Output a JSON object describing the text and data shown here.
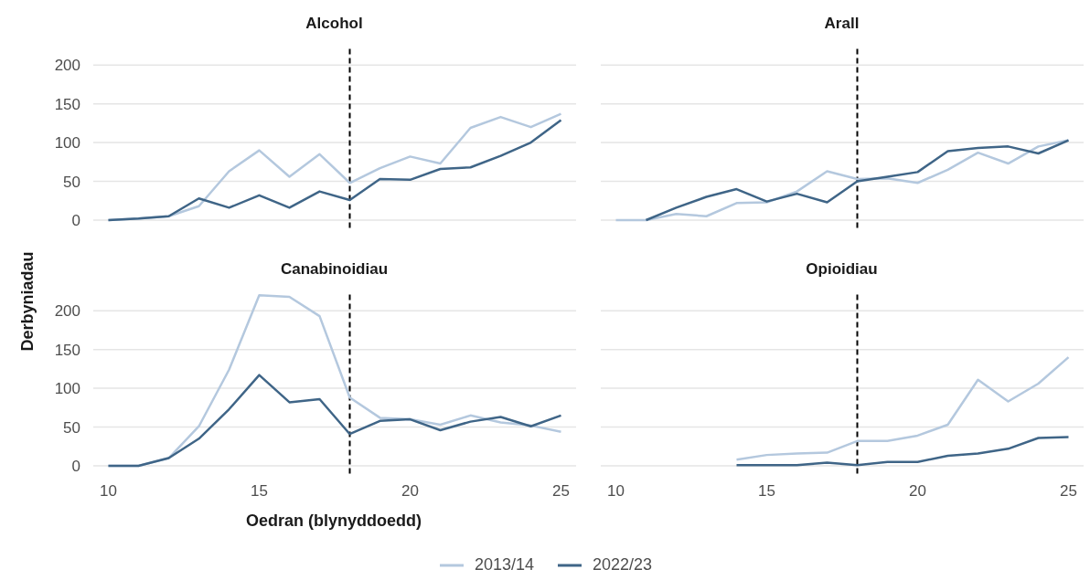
{
  "chart_data": [
    {
      "type": "line",
      "title": "Alcohol",
      "x": [
        10,
        11,
        12,
        13,
        14,
        15,
        16,
        17,
        18,
        19,
        20,
        21,
        22,
        23,
        24,
        25
      ],
      "xlim": [
        9.5,
        25.5
      ],
      "xticks": [
        10,
        15,
        20,
        25
      ],
      "ylim": [
        -10,
        225
      ],
      "yticks": [
        0,
        50,
        100,
        150,
        200
      ],
      "grid": "y",
      "tick_labels": "y",
      "ref_lines": [
        {
          "axis": "x",
          "value": 18,
          "color": "#000000",
          "line_style": "dashed"
        }
      ],
      "series": [
        {
          "color": "#b4c8de",
          "values": [
            0,
            2,
            5,
            18,
            63,
            90,
            56,
            85,
            48,
            67,
            82,
            73,
            119,
            133,
            120,
            137
          ]
        },
        {
          "color": "#3f6587",
          "values": [
            0,
            2,
            5,
            28,
            16,
            32,
            16,
            37,
            26,
            53,
            52,
            66,
            68,
            83,
            100,
            129
          ]
        }
      ]
    },
    {
      "type": "line",
      "title": "Arall",
      "x": [
        10,
        11,
        12,
        13,
        14,
        15,
        16,
        17,
        18,
        19,
        20,
        21,
        22,
        23,
        24,
        25
      ],
      "xlim": [
        9.5,
        25.5
      ],
      "xticks": [
        10,
        15,
        20,
        25
      ],
      "ylim": [
        -10,
        225
      ],
      "yticks": [
        0,
        50,
        100,
        150,
        200
      ],
      "grid": "y",
      "tick_labels": false,
      "ref_lines": [
        {
          "axis": "x",
          "value": 18,
          "color": "#000000",
          "line_style": "dashed"
        }
      ],
      "series": [
        {
          "color": "#b4c8de",
          "values": [
            0,
            0,
            8,
            5,
            22,
            23,
            37,
            63,
            53,
            54,
            48,
            65,
            87,
            73,
            95,
            103
          ]
        },
        {
          "color": "#3f6587",
          "values": [
            null,
            0,
            16,
            30,
            40,
            24,
            34,
            23,
            50,
            56,
            62,
            89,
            93,
            95,
            86,
            103
          ]
        }
      ]
    },
    {
      "type": "line",
      "title": "Canabinoidiau",
      "xlabel": "Oedran (blynyddoedd)",
      "ylabel": "Derbyniadau",
      "x": [
        10,
        11,
        12,
        13,
        14,
        15,
        16,
        17,
        18,
        19,
        20,
        21,
        22,
        23,
        24,
        25
      ],
      "xlim": [
        9.5,
        25.5
      ],
      "xticks": [
        10,
        15,
        20,
        25
      ],
      "ylim": [
        -10,
        225
      ],
      "yticks": [
        0,
        50,
        100,
        150,
        200
      ],
      "grid": "y",
      "ref_lines": [
        {
          "axis": "x",
          "value": 18,
          "color": "#000000",
          "line_style": "dashed"
        }
      ],
      "series": [
        {
          "color": "#b4c8de",
          "values": [
            0,
            0,
            10,
            51,
            124,
            220,
            218,
            193,
            88,
            62,
            60,
            53,
            65,
            56,
            52,
            44
          ]
        },
        {
          "color": "#3f6587",
          "values": [
            0,
            0,
            10,
            35,
            73,
            117,
            82,
            86,
            41,
            58,
            60,
            46,
            57,
            63,
            51,
            65
          ]
        }
      ]
    },
    {
      "type": "line",
      "title": "Opioidiau",
      "x": [
        14,
        15,
        16,
        17,
        18,
        19,
        20,
        21,
        22,
        23,
        24,
        25
      ],
      "xlim": [
        9.5,
        25.5
      ],
      "xticks": [
        10,
        15,
        20,
        25
      ],
      "ylim": [
        -10,
        225
      ],
      "yticks": [
        0,
        50,
        100,
        150,
        200
      ],
      "grid": "y",
      "tick_labels": "x",
      "legend": "bottom",
      "ref_lines": [
        {
          "axis": "x",
          "value": 18,
          "color": "#000000",
          "line_style": "dashed"
        }
      ],
      "series": [
        {
          "name": "2013/14",
          "color": "#b4c8de",
          "values": [
            8,
            14,
            16,
            17,
            32,
            32,
            39,
            53,
            111,
            83,
            106,
            140
          ]
        },
        {
          "name": "2022/23",
          "color": "#3f6587",
          "values": [
            1,
            1,
            1,
            4,
            1,
            5,
            5,
            13,
            16,
            22,
            36,
            37
          ]
        }
      ]
    }
  ]
}
